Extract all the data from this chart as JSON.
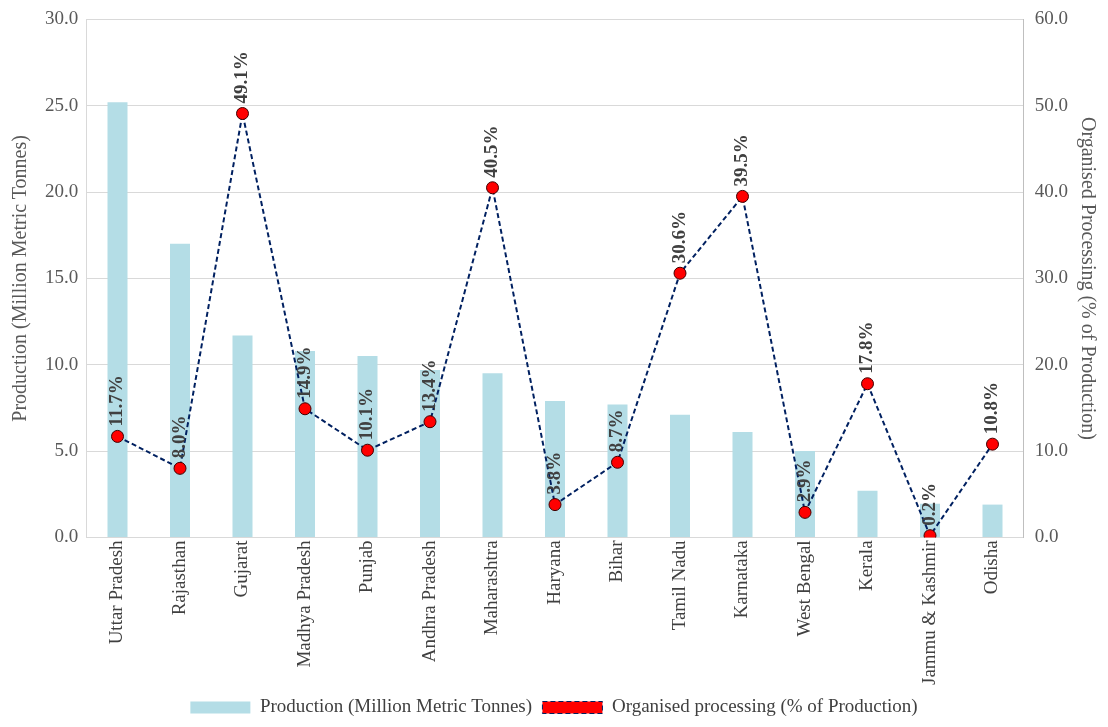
{
  "chart_data": {
    "type": "bar",
    "ylabel": "Production (Million Metric Tonnes)",
    "y2label": "Organised Processing (% of Production)",
    "categories": [
      "Uttar Pradesh",
      "Rajasthan",
      "Gujarat",
      "Madhya Pradesh",
      "Punjab",
      "Andhra Pradesh",
      "Maharashtra",
      "Haryana",
      "Bihar",
      "Tamil Nadu",
      "Karnataka",
      "West Bengal",
      "Kerala",
      "Jammu & Kashmir",
      "Odisha"
    ],
    "series": [
      {
        "name": "Production (Million Metric Tonnes)",
        "color": "#b4dde6",
        "values": [
          25.2,
          17.0,
          11.7,
          10.8,
          10.5,
          9.7,
          9.5,
          7.9,
          7.7,
          7.1,
          6.1,
          5.0,
          2.7,
          1.95,
          1.9
        ]
      },
      {
        "name": "Organised processing (% of Production)",
        "type": "line",
        "axis": "y2",
        "color": "#002060",
        "marker": "circle",
        "line_style": "dashed",
        "values": [
          11.7,
          8.0,
          49.1,
          14.9,
          10.1,
          13.4,
          40.5,
          3.8,
          8.7,
          30.6,
          39.5,
          2.9,
          17.8,
          0.2,
          10.8
        ],
        "value_labels": [
          "11.7%",
          "8.0%",
          "49.1%",
          "14.9%",
          "10.1%",
          "13.4%",
          "40.5%",
          "3.8%",
          "8.7%",
          "30.6%",
          "39.5%",
          "2.9%",
          "17.8%",
          "0.2%",
          "10.8%"
        ]
      }
    ],
    "ylim": [
      0,
      30
    ],
    "yticks": [
      {
        "value": 0,
        "label": "0.0"
      },
      {
        "value": 5,
        "label": "5.0"
      },
      {
        "value": 10,
        "label": "10.0"
      },
      {
        "value": 15,
        "label": "15.0"
      },
      {
        "value": 20,
        "label": "20.0"
      },
      {
        "value": 25,
        "label": "25.0"
      },
      {
        "value": 30,
        "label": "30.0"
      }
    ],
    "y2lim": [
      0,
      60
    ],
    "y2ticks": [
      {
        "value": 0,
        "label": "0.0"
      },
      {
        "value": 10,
        "label": "10.0"
      },
      {
        "value": 20,
        "label": "20.0"
      },
      {
        "value": 30,
        "label": "30.0"
      },
      {
        "value": 40,
        "label": "40.0"
      },
      {
        "value": 50,
        "label": "50.0"
      },
      {
        "value": 60,
        "label": "60.0"
      }
    ],
    "grid": "y",
    "legend": "bottom"
  }
}
